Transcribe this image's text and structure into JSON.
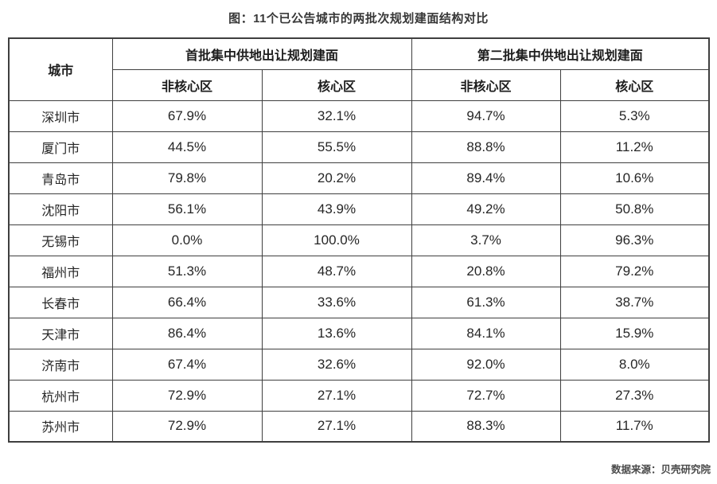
{
  "page": {
    "title": "图：11个已公告城市的两批次规划建面结构对比",
    "source": "数据来源：贝壳研究院"
  },
  "colors": {
    "border": "#3f3f3f",
    "title_text": "#383838",
    "cell_text": "#262626",
    "source_text": "#4a4a4a",
    "background": "#ffffff"
  },
  "chart_data": {
    "type": "table",
    "title": "图：11个已公告城市的两批次规划建面结构对比",
    "source": "数据来源：贝壳研究院",
    "header": {
      "city": "城市",
      "batch1_group": "首批集中供地出让规划建面",
      "batch2_group": "第二批集中供地出让规划建面",
      "batch1_noncore": "非核心区",
      "batch1_core": "核心区",
      "batch2_noncore": "非核心区",
      "batch2_core": "核心区"
    },
    "columns": [
      "城市",
      "首批-非核心区",
      "首批-核心区",
      "第二批-非核心区",
      "第二批-核心区"
    ],
    "rows": [
      {
        "city": "深圳市",
        "values": [
          "67.9%",
          "32.1%",
          "94.7%",
          "5.3%"
        ]
      },
      {
        "city": "厦门市",
        "values": [
          "44.5%",
          "55.5%",
          "88.8%",
          "11.2%"
        ]
      },
      {
        "city": "青岛市",
        "values": [
          "79.8%",
          "20.2%",
          "89.4%",
          "10.6%"
        ]
      },
      {
        "city": "沈阳市",
        "values": [
          "56.1%",
          "43.9%",
          "49.2%",
          "50.8%"
        ]
      },
      {
        "city": "无锡市",
        "values": [
          "0.0%",
          "100.0%",
          "3.7%",
          "96.3%"
        ]
      },
      {
        "city": "福州市",
        "values": [
          "51.3%",
          "48.7%",
          "20.8%",
          "79.2%"
        ]
      },
      {
        "city": "长春市",
        "values": [
          "66.4%",
          "33.6%",
          "61.3%",
          "38.7%"
        ]
      },
      {
        "city": "天津市",
        "values": [
          "86.4%",
          "13.6%",
          "84.1%",
          "15.9%"
        ]
      },
      {
        "city": "济南市",
        "values": [
          "67.4%",
          "32.6%",
          "92.0%",
          "8.0%"
        ]
      },
      {
        "city": "杭州市",
        "values": [
          "72.9%",
          "27.1%",
          "72.7%",
          "27.3%"
        ]
      },
      {
        "city": "苏州市",
        "values": [
          "72.9%",
          "27.1%",
          "88.3%",
          "11.7%"
        ]
      }
    ]
  }
}
